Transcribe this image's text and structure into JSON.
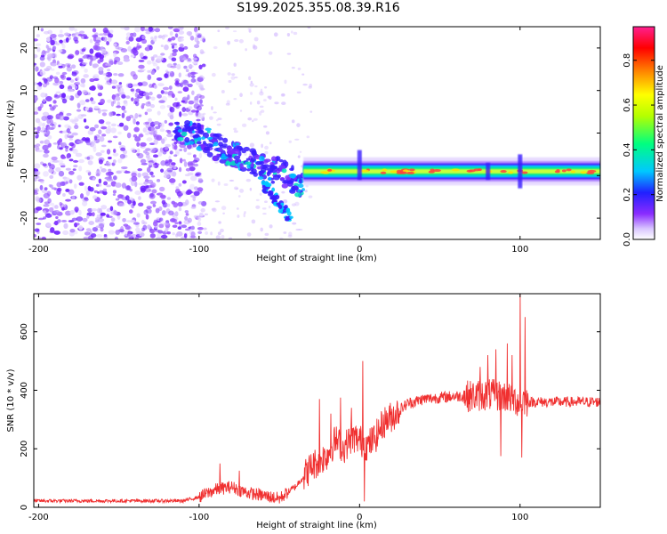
{
  "title": "S199.2025.355.08.39.R16",
  "colors": {
    "background": "#ffffff",
    "axis": "#000000",
    "snr_line": "#f03030",
    "spectro_scatter": "#7a2cff",
    "spectro_band_core": "#c8ff3a"
  },
  "chart_data": [
    {
      "type": "heatmap",
      "name": "spectrogram",
      "xlabel": "Height of straight line (km)",
      "ylabel": "Frequency (Hz)",
      "xlim": [
        -203,
        150
      ],
      "ylim": [
        -25,
        25
      ],
      "xticks": [
        -200,
        -100,
        0,
        100
      ],
      "yticks": [
        -20,
        -10,
        0,
        10,
        20
      ],
      "noise_region_x": [
        -203,
        -100
      ],
      "sparse_region_x": [
        -100,
        -30
      ],
      "diagonal_feature": {
        "x": [
          -115,
          -100,
          -90,
          -80,
          -70,
          -60,
          -50,
          -42,
          -35
        ],
        "y": [
          0,
          -1,
          -3,
          -5,
          -6,
          -8,
          -9,
          -11,
          -12
        ]
      },
      "tail_feature": {
        "x": [
          -60,
          -55,
          -50,
          -45,
          -42
        ],
        "y": [
          -12,
          -14,
          -17,
          -19,
          -21
        ]
      },
      "band": {
        "x_start": -35,
        "x_end": 150,
        "center_hz": -9,
        "half_width_hz": 1.5
      },
      "disturbances": [
        {
          "x": 0,
          "y_range": [
            -11,
            -4
          ]
        },
        {
          "x": 80,
          "y_range": [
            -11,
            -7
          ]
        },
        {
          "x": 100,
          "y_range": [
            -13,
            -5
          ]
        }
      ],
      "colorbar": {
        "label": "Normalized spectral amplitude",
        "range": [
          0,
          0.95
        ],
        "ticks": [
          0.0,
          0.2,
          0.4,
          0.6,
          0.8
        ],
        "tick_labels": [
          "0.0",
          "0.2",
          "0.4",
          "0.6",
          "0.8"
        ]
      }
    },
    {
      "type": "line",
      "name": "snr",
      "xlabel": "Height of straight line (km)",
      "ylabel": "SNR (10 * v/v)",
      "xlim": [
        -203,
        150
      ],
      "ylim": [
        0,
        730
      ],
      "xticks": [
        -200,
        -100,
        0,
        100
      ],
      "yticks": [
        0,
        200,
        400,
        600
      ],
      "series": [
        {
          "name": "SNR",
          "x": [
            -203,
            -110,
            -100,
            -90,
            -80,
            -70,
            -60,
            -50,
            -40,
            -30,
            -20,
            -15,
            -10,
            -5,
            0,
            5,
            10,
            15,
            20,
            30,
            40,
            50,
            60,
            70,
            80,
            90,
            95,
            100,
            102,
            105,
            110,
            120,
            130,
            140,
            150
          ],
          "values": [
            22,
            22,
            35,
            60,
            70,
            50,
            40,
            30,
            70,
            140,
            180,
            230,
            200,
            240,
            230,
            210,
            240,
            290,
            310,
            355,
            370,
            375,
            380,
            380,
            385,
            380,
            370,
            360,
            370,
            360,
            360,
            360,
            360,
            360,
            360
          ]
        }
      ],
      "spikes": [
        {
          "x": -87,
          "y": 150
        },
        {
          "x": -75,
          "y": 125
        },
        {
          "x": -25,
          "y": 370
        },
        {
          "x": -18,
          "y": 320
        },
        {
          "x": -12,
          "y": 375
        },
        {
          "x": -5,
          "y": 340
        },
        {
          "x": 2,
          "y": 500
        },
        {
          "x": 3,
          "y": 20
        },
        {
          "x": 75,
          "y": 480
        },
        {
          "x": 80,
          "y": 520
        },
        {
          "x": 85,
          "y": 540
        },
        {
          "x": 88,
          "y": 175
        },
        {
          "x": 92,
          "y": 560
        },
        {
          "x": 95,
          "y": 520
        },
        {
          "x": 100,
          "y": 730
        },
        {
          "x": 101,
          "y": 170
        },
        {
          "x": 103,
          "y": 650
        }
      ]
    }
  ]
}
